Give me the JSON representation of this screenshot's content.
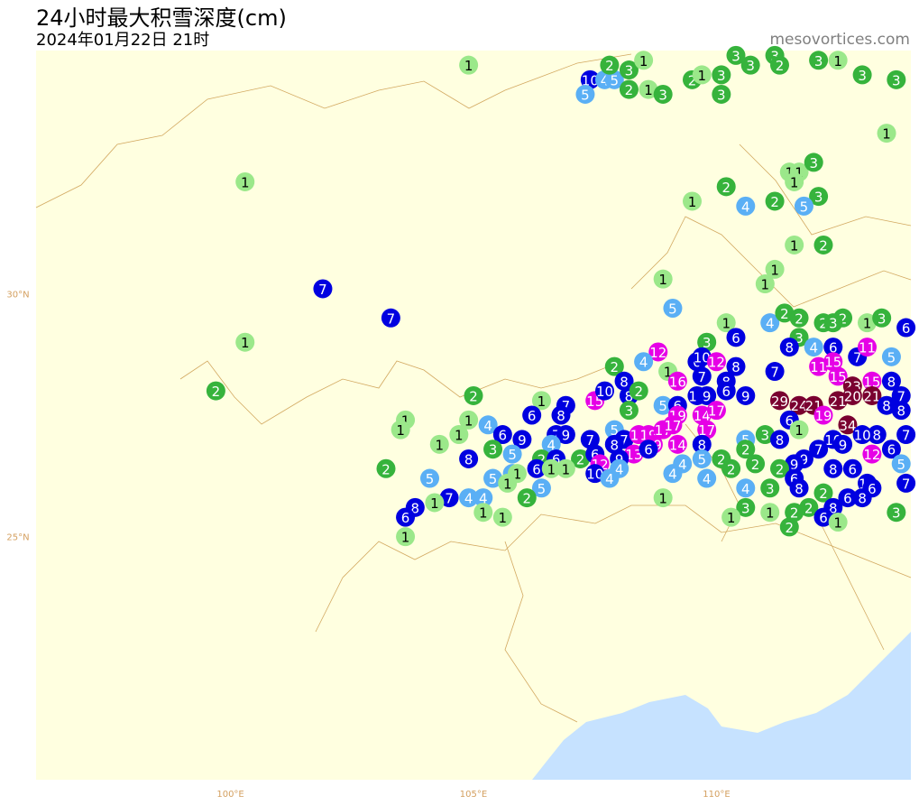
{
  "title": "24小时最大积雪深度(cm)",
  "subtitle": "2024年01月22日 21时",
  "watermark": "mesovortices.com",
  "map": {
    "xlim": [
      96,
      114
    ],
    "ylim": [
      20,
      35
    ],
    "xticks": [
      {
        "value": 100,
        "label": "100°E"
      },
      {
        "value": 105,
        "label": "105°E"
      },
      {
        "value": 110,
        "label": "110°E"
      }
    ],
    "yticks": [
      {
        "value": 25,
        "label": "25°N"
      },
      {
        "value": 30,
        "label": "30°N"
      }
    ]
  },
  "color_scale": [
    {
      "min": 1,
      "color": "#9be88a",
      "text": "#000"
    },
    {
      "min": 2,
      "color": "#36b33c",
      "text": "#fff"
    },
    {
      "min": 4,
      "color": "#5aaff5",
      "text": "#fff"
    },
    {
      "min": 6,
      "color": "#0000e0",
      "text": "#fff"
    },
    {
      "min": 11,
      "color": "#e600e6",
      "text": "#fff"
    },
    {
      "min": 20,
      "color": "#7a0030",
      "text": "#fff"
    }
  ],
  "stations": [
    {
      "lon": 104.9,
      "lat": 34.7,
      "value": 1
    },
    {
      "lon": 107.4,
      "lat": 34.4,
      "value": 10
    },
    {
      "lon": 107.7,
      "lat": 34.4,
      "value": 4
    },
    {
      "lon": 107.9,
      "lat": 34.4,
      "value": 5
    },
    {
      "lon": 107.3,
      "lat": 34.1,
      "value": 5
    },
    {
      "lon": 107.8,
      "lat": 34.7,
      "value": 2
    },
    {
      "lon": 108.2,
      "lat": 34.6,
      "value": 3
    },
    {
      "lon": 108.5,
      "lat": 34.8,
      "value": 1
    },
    {
      "lon": 108.2,
      "lat": 34.2,
      "value": 2
    },
    {
      "lon": 108.6,
      "lat": 34.2,
      "value": 1
    },
    {
      "lon": 108.9,
      "lat": 34.1,
      "value": 3
    },
    {
      "lon": 109.5,
      "lat": 34.4,
      "value": 2
    },
    {
      "lon": 109.7,
      "lat": 34.5,
      "value": 1
    },
    {
      "lon": 110.1,
      "lat": 34.5,
      "value": 3
    },
    {
      "lon": 110.1,
      "lat": 34.1,
      "value": 3
    },
    {
      "lon": 110.4,
      "lat": 34.9,
      "value": 3
    },
    {
      "lon": 110.7,
      "lat": 34.7,
      "value": 3
    },
    {
      "lon": 111.2,
      "lat": 34.9,
      "value": 3
    },
    {
      "lon": 111.3,
      "lat": 34.7,
      "value": 2
    },
    {
      "lon": 112.1,
      "lat": 34.8,
      "value": 3
    },
    {
      "lon": 112.5,
      "lat": 34.8,
      "value": 1
    },
    {
      "lon": 113.0,
      "lat": 34.5,
      "value": 3
    },
    {
      "lon": 113.7,
      "lat": 34.4,
      "value": 3
    },
    {
      "lon": 113.5,
      "lat": 33.3,
      "value": 1
    },
    {
      "lon": 100.3,
      "lat": 32.3,
      "value": 1
    },
    {
      "lon": 111.5,
      "lat": 32.5,
      "value": 1
    },
    {
      "lon": 111.7,
      "lat": 32.5,
      "value": 1
    },
    {
      "lon": 112.0,
      "lat": 32.7,
      "value": 3
    },
    {
      "lon": 111.6,
      "lat": 32.3,
      "value": 1
    },
    {
      "lon": 112.1,
      "lat": 32.0,
      "value": 3
    },
    {
      "lon": 110.2,
      "lat": 32.2,
      "value": 2
    },
    {
      "lon": 109.5,
      "lat": 31.9,
      "value": 1
    },
    {
      "lon": 110.6,
      "lat": 31.8,
      "value": 4
    },
    {
      "lon": 111.2,
      "lat": 31.9,
      "value": 2
    },
    {
      "lon": 111.8,
      "lat": 31.8,
      "value": 5
    },
    {
      "lon": 111.6,
      "lat": 31.0,
      "value": 1
    },
    {
      "lon": 112.2,
      "lat": 31.0,
      "value": 2
    },
    {
      "lon": 111.2,
      "lat": 30.5,
      "value": 1
    },
    {
      "lon": 111.0,
      "lat": 30.2,
      "value": 1
    },
    {
      "lon": 108.9,
      "lat": 30.3,
      "value": 1
    },
    {
      "lon": 101.9,
      "lat": 30.1,
      "value": 7
    },
    {
      "lon": 103.3,
      "lat": 29.5,
      "value": 7
    },
    {
      "lon": 100.3,
      "lat": 29.0,
      "value": 1
    },
    {
      "lon": 99.7,
      "lat": 28.0,
      "value": 2
    },
    {
      "lon": 109.1,
      "lat": 29.7,
      "value": 5
    },
    {
      "lon": 110.2,
      "lat": 29.4,
      "value": 1
    },
    {
      "lon": 110.4,
      "lat": 29.1,
      "value": 6
    },
    {
      "lon": 111.1,
      "lat": 29.4,
      "value": 4
    },
    {
      "lon": 111.4,
      "lat": 29.6,
      "value": 2
    },
    {
      "lon": 111.7,
      "lat": 29.5,
      "value": 2
    },
    {
      "lon": 111.7,
      "lat": 29.1,
      "value": 3
    },
    {
      "lon": 112.2,
      "lat": 29.4,
      "value": 2
    },
    {
      "lon": 112.6,
      "lat": 29.5,
      "value": 2
    },
    {
      "lon": 112.4,
      "lat": 29.4,
      "value": 3
    },
    {
      "lon": 113.1,
      "lat": 29.4,
      "value": 1
    },
    {
      "lon": 113.4,
      "lat": 29.5,
      "value": 3
    },
    {
      "lon": 113.9,
      "lat": 29.3,
      "value": 6
    },
    {
      "lon": 109.8,
      "lat": 29.0,
      "value": 3
    },
    {
      "lon": 108.8,
      "lat": 28.8,
      "value": 12
    },
    {
      "lon": 108.5,
      "lat": 28.6,
      "value": 4
    },
    {
      "lon": 109.6,
      "lat": 28.6,
      "value": 6
    },
    {
      "lon": 109.7,
      "lat": 28.7,
      "value": 10
    },
    {
      "lon": 110.0,
      "lat": 28.6,
      "value": 12
    },
    {
      "lon": 111.5,
      "lat": 28.9,
      "value": 8
    },
    {
      "lon": 112.0,
      "lat": 28.9,
      "value": 4
    },
    {
      "lon": 112.4,
      "lat": 28.9,
      "value": 6
    },
    {
      "lon": 112.9,
      "lat": 28.7,
      "value": 7
    },
    {
      "lon": 113.1,
      "lat": 28.9,
      "value": 11
    },
    {
      "lon": 113.6,
      "lat": 28.7,
      "value": 5
    },
    {
      "lon": 107.9,
      "lat": 28.5,
      "value": 2
    },
    {
      "lon": 108.1,
      "lat": 28.2,
      "value": 8
    },
    {
      "lon": 109.0,
      "lat": 28.4,
      "value": 1
    },
    {
      "lon": 109.2,
      "lat": 28.2,
      "value": 16
    },
    {
      "lon": 109.7,
      "lat": 28.3,
      "value": 7
    },
    {
      "lon": 110.4,
      "lat": 28.5,
      "value": 8
    },
    {
      "lon": 110.2,
      "lat": 28.2,
      "value": 8
    },
    {
      "lon": 111.2,
      "lat": 28.4,
      "value": 7
    },
    {
      "lon": 112.1,
      "lat": 28.5,
      "value": 11
    },
    {
      "lon": 112.4,
      "lat": 28.6,
      "value": 15
    },
    {
      "lon": 112.5,
      "lat": 28.3,
      "value": 15
    },
    {
      "lon": 112.8,
      "lat": 28.1,
      "value": 23
    },
    {
      "lon": 113.2,
      "lat": 28.2,
      "value": 15
    },
    {
      "lon": 113.6,
      "lat": 28.2,
      "value": 8
    },
    {
      "lon": 105.0,
      "lat": 27.9,
      "value": 2
    },
    {
      "lon": 106.4,
      "lat": 27.8,
      "value": 1
    },
    {
      "lon": 106.9,
      "lat": 27.7,
      "value": 7
    },
    {
      "lon": 107.5,
      "lat": 27.8,
      "value": 15
    },
    {
      "lon": 107.7,
      "lat": 28.0,
      "value": 10
    },
    {
      "lon": 108.2,
      "lat": 27.9,
      "value": 8
    },
    {
      "lon": 108.4,
      "lat": 28.0,
      "value": 2
    },
    {
      "lon": 108.9,
      "lat": 27.7,
      "value": 5
    },
    {
      "lon": 109.2,
      "lat": 27.7,
      "value": 6
    },
    {
      "lon": 109.6,
      "lat": 27.9,
      "value": 10
    },
    {
      "lon": 109.8,
      "lat": 27.9,
      "value": 9
    },
    {
      "lon": 110.2,
      "lat": 28.0,
      "value": 6
    },
    {
      "lon": 110.6,
      "lat": 27.9,
      "value": 9
    },
    {
      "lon": 111.3,
      "lat": 27.8,
      "value": 29
    },
    {
      "lon": 111.7,
      "lat": 27.7,
      "value": 24
    },
    {
      "lon": 112.0,
      "lat": 27.7,
      "value": 21
    },
    {
      "lon": 112.5,
      "lat": 27.8,
      "value": 21
    },
    {
      "lon": 112.8,
      "lat": 27.9,
      "value": 20
    },
    {
      "lon": 113.2,
      "lat": 27.9,
      "value": 21
    },
    {
      "lon": 113.8,
      "lat": 27.9,
      "value": 7
    },
    {
      "lon": 113.8,
      "lat": 27.6,
      "value": 8
    },
    {
      "lon": 113.5,
      "lat": 27.7,
      "value": 8
    },
    {
      "lon": 106.2,
      "lat": 27.5,
      "value": 6
    },
    {
      "lon": 106.8,
      "lat": 27.5,
      "value": 8
    },
    {
      "lon": 108.2,
      "lat": 27.6,
      "value": 3
    },
    {
      "lon": 109.2,
      "lat": 27.5,
      "value": 19
    },
    {
      "lon": 109.7,
      "lat": 27.5,
      "value": 14
    },
    {
      "lon": 110.0,
      "lat": 27.6,
      "value": 17
    },
    {
      "lon": 112.2,
      "lat": 27.5,
      "value": 19
    },
    {
      "lon": 111.5,
      "lat": 27.4,
      "value": 6
    },
    {
      "lon": 111.7,
      "lat": 27.2,
      "value": 1
    },
    {
      "lon": 112.7,
      "lat": 27.3,
      "value": 34
    },
    {
      "lon": 103.6,
      "lat": 27.4,
      "value": 1
    },
    {
      "lon": 103.5,
      "lat": 27.2,
      "value": 1
    },
    {
      "lon": 104.9,
      "lat": 27.4,
      "value": 1
    },
    {
      "lon": 105.3,
      "lat": 27.3,
      "value": 4
    },
    {
      "lon": 105.6,
      "lat": 27.1,
      "value": 6
    },
    {
      "lon": 104.7,
      "lat": 27.1,
      "value": 1
    },
    {
      "lon": 106.0,
      "lat": 27.0,
      "value": 9
    },
    {
      "lon": 106.7,
      "lat": 27.1,
      "value": 7
    },
    {
      "lon": 106.9,
      "lat": 27.1,
      "value": 9
    },
    {
      "lon": 107.4,
      "lat": 27.0,
      "value": 7
    },
    {
      "lon": 107.9,
      "lat": 27.2,
      "value": 5
    },
    {
      "lon": 108.1,
      "lat": 27.0,
      "value": 7
    },
    {
      "lon": 108.4,
      "lat": 27.1,
      "value": 14
    },
    {
      "lon": 108.6,
      "lat": 27.1,
      "value": 19
    },
    {
      "lon": 108.9,
      "lat": 27.2,
      "value": 17
    },
    {
      "lon": 109.1,
      "lat": 27.3,
      "value": 17
    },
    {
      "lon": 109.8,
      "lat": 27.2,
      "value": 17
    },
    {
      "lon": 111.0,
      "lat": 27.1,
      "value": 3
    },
    {
      "lon": 110.6,
      "lat": 27.0,
      "value": 5
    },
    {
      "lon": 111.3,
      "lat": 27.0,
      "value": 8
    },
    {
      "lon": 113.3,
      "lat": 27.1,
      "value": 8
    },
    {
      "lon": 113.0,
      "lat": 27.1,
      "value": 10
    },
    {
      "lon": 112.4,
      "lat": 27.0,
      "value": 10
    },
    {
      "lon": 112.6,
      "lat": 26.9,
      "value": 9
    },
    {
      "lon": 113.6,
      "lat": 26.8,
      "value": 6
    },
    {
      "lon": 113.9,
      "lat": 27.1,
      "value": 7
    },
    {
      "lon": 104.3,
      "lat": 26.9,
      "value": 1
    },
    {
      "lon": 105.4,
      "lat": 26.8,
      "value": 3
    },
    {
      "lon": 105.8,
      "lat": 26.7,
      "value": 5
    },
    {
      "lon": 106.6,
      "lat": 26.9,
      "value": 4
    },
    {
      "lon": 107.9,
      "lat": 26.9,
      "value": 8
    },
    {
      "lon": 108.3,
      "lat": 26.7,
      "value": 13
    },
    {
      "lon": 108.7,
      "lat": 26.9,
      "value": 19
    },
    {
      "lon": 109.2,
      "lat": 26.9,
      "value": 14
    },
    {
      "lon": 109.7,
      "lat": 26.9,
      "value": 8
    },
    {
      "lon": 110.6,
      "lat": 26.8,
      "value": 2
    },
    {
      "lon": 112.1,
      "lat": 26.8,
      "value": 7
    },
    {
      "lon": 111.8,
      "lat": 26.6,
      "value": 9
    },
    {
      "lon": 111.6,
      "lat": 26.5,
      "value": 9
    },
    {
      "lon": 113.2,
      "lat": 26.7,
      "value": 12
    },
    {
      "lon": 113.8,
      "lat": 26.5,
      "value": 5
    },
    {
      "lon": 104.9,
      "lat": 26.6,
      "value": 8
    },
    {
      "lon": 103.2,
      "lat": 26.4,
      "value": 2
    },
    {
      "lon": 104.1,
      "lat": 26.2,
      "value": 5
    },
    {
      "lon": 106.4,
      "lat": 26.6,
      "value": 2
    },
    {
      "lon": 106.7,
      "lat": 26.6,
      "value": 6
    },
    {
      "lon": 107.2,
      "lat": 26.6,
      "value": 2
    },
    {
      "lon": 107.5,
      "lat": 26.7,
      "value": 6
    },
    {
      "lon": 107.6,
      "lat": 26.5,
      "value": 12
    },
    {
      "lon": 108.0,
      "lat": 26.6,
      "value": 9
    },
    {
      "lon": 108.0,
      "lat": 26.4,
      "value": 4
    },
    {
      "lon": 108.6,
      "lat": 26.8,
      "value": 6
    },
    {
      "lon": 109.3,
      "lat": 26.5,
      "value": 4
    },
    {
      "lon": 109.7,
      "lat": 26.6,
      "value": 5
    },
    {
      "lon": 110.1,
      "lat": 26.6,
      "value": 2
    },
    {
      "lon": 110.8,
      "lat": 26.5,
      "value": 2
    },
    {
      "lon": 110.3,
      "lat": 26.4,
      "value": 2
    },
    {
      "lon": 111.3,
      "lat": 26.4,
      "value": 2
    },
    {
      "lon": 112.4,
      "lat": 26.4,
      "value": 8
    },
    {
      "lon": 112.8,
      "lat": 26.4,
      "value": 6
    },
    {
      "lon": 105.4,
      "lat": 26.2,
      "value": 5
    },
    {
      "lon": 105.8,
      "lat": 26.3,
      "value": 4
    },
    {
      "lon": 105.9,
      "lat": 26.3,
      "value": 1
    },
    {
      "lon": 106.3,
      "lat": 26.4,
      "value": 6
    },
    {
      "lon": 106.6,
      "lat": 26.4,
      "value": 1
    },
    {
      "lon": 106.9,
      "lat": 26.4,
      "value": 1
    },
    {
      "lon": 107.5,
      "lat": 26.3,
      "value": 10
    },
    {
      "lon": 107.8,
      "lat": 26.2,
      "value": 4
    },
    {
      "lon": 109.1,
      "lat": 26.3,
      "value": 4
    },
    {
      "lon": 109.8,
      "lat": 26.2,
      "value": 4
    },
    {
      "lon": 110.6,
      "lat": 26.0,
      "value": 4
    },
    {
      "lon": 111.1,
      "lat": 26.0,
      "value": 3
    },
    {
      "lon": 111.6,
      "lat": 26.2,
      "value": 6
    },
    {
      "lon": 111.7,
      "lat": 26.0,
      "value": 8
    },
    {
      "lon": 113.1,
      "lat": 26.1,
      "value": 10
    },
    {
      "lon": 113.2,
      "lat": 26.0,
      "value": 6
    },
    {
      "lon": 113.9,
      "lat": 26.1,
      "value": 7
    },
    {
      "lon": 105.7,
      "lat": 26.1,
      "value": 1
    },
    {
      "lon": 106.4,
      "lat": 26.0,
      "value": 5
    },
    {
      "lon": 104.9,
      "lat": 25.8,
      "value": 4
    },
    {
      "lon": 105.2,
      "lat": 25.8,
      "value": 4
    },
    {
      "lon": 104.5,
      "lat": 25.8,
      "value": 7
    },
    {
      "lon": 104.2,
      "lat": 25.7,
      "value": 1
    },
    {
      "lon": 103.8,
      "lat": 25.6,
      "value": 8
    },
    {
      "lon": 106.1,
      "lat": 25.8,
      "value": 2
    },
    {
      "lon": 108.9,
      "lat": 25.8,
      "value": 1
    },
    {
      "lon": 112.2,
      "lat": 25.9,
      "value": 2
    },
    {
      "lon": 112.7,
      "lat": 25.8,
      "value": 6
    },
    {
      "lon": 113.0,
      "lat": 25.8,
      "value": 8
    },
    {
      "lon": 112.4,
      "lat": 25.6,
      "value": 8
    },
    {
      "lon": 111.9,
      "lat": 25.6,
      "value": 2
    },
    {
      "lon": 111.6,
      "lat": 25.5,
      "value": 2
    },
    {
      "lon": 111.1,
      "lat": 25.5,
      "value": 1
    },
    {
      "lon": 110.6,
      "lat": 25.6,
      "value": 3
    },
    {
      "lon": 110.3,
      "lat": 25.4,
      "value": 1
    },
    {
      "lon": 103.6,
      "lat": 25.4,
      "value": 6
    },
    {
      "lon": 105.2,
      "lat": 25.5,
      "value": 1
    },
    {
      "lon": 105.6,
      "lat": 25.4,
      "value": 1
    },
    {
      "lon": 112.2,
      "lat": 25.4,
      "value": 6
    },
    {
      "lon": 112.5,
      "lat": 25.3,
      "value": 1
    },
    {
      "lon": 113.7,
      "lat": 25.5,
      "value": 3
    },
    {
      "lon": 111.5,
      "lat": 25.2,
      "value": 2
    },
    {
      "lon": 103.6,
      "lat": 25.0,
      "value": 1
    }
  ]
}
